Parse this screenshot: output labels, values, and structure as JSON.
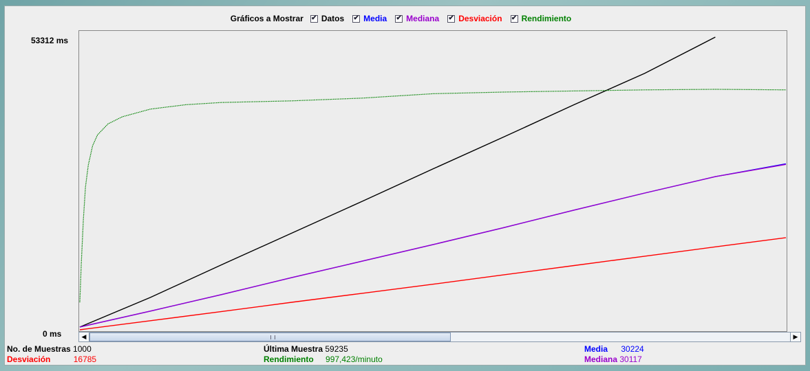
{
  "legend": {
    "title": "Gráficos a Mostrar",
    "items": [
      {
        "label": "Datos",
        "color": "#000000",
        "checked": true
      },
      {
        "label": "Media",
        "color": "#0000ff",
        "checked": true
      },
      {
        "label": "Mediana",
        "color": "#9900cc",
        "checked": true
      },
      {
        "label": "Desviación",
        "color": "#ff0000",
        "checked": true
      },
      {
        "label": "Rendimiento",
        "color": "#008000",
        "checked": true
      }
    ]
  },
  "axis": {
    "y_max_label": "53312  ms",
    "y_min_label": "0  ms"
  },
  "chart_data": {
    "type": "line",
    "x": {
      "label": "",
      "range": [
        0,
        1000
      ]
    },
    "y": {
      "unit": "ms",
      "range": [
        0,
        53312
      ]
    },
    "grid": false,
    "legend_position": "top",
    "series": [
      {
        "name": "Datos",
        "color": "#000000",
        "points": [
          [
            0,
            500
          ],
          [
            100,
            5900
          ],
          [
            200,
            11800
          ],
          [
            300,
            17600
          ],
          [
            400,
            23400
          ],
          [
            500,
            29300
          ],
          [
            600,
            35100
          ],
          [
            700,
            41000
          ],
          [
            800,
            46700
          ],
          [
            900,
            53312
          ]
        ]
      },
      {
        "name": "Media",
        "color": "#0000ff",
        "points": [
          [
            0,
            500
          ],
          [
            100,
            3400
          ],
          [
            200,
            6400
          ],
          [
            300,
            9500
          ],
          [
            400,
            12500
          ],
          [
            500,
            15500
          ],
          [
            600,
            18600
          ],
          [
            700,
            21800
          ],
          [
            800,
            24900
          ],
          [
            900,
            27900
          ],
          [
            1000,
            30224
          ]
        ]
      },
      {
        "name": "Mediana",
        "color": "#9900cc",
        "points": [
          [
            0,
            500
          ],
          [
            100,
            3400
          ],
          [
            200,
            6400
          ],
          [
            300,
            9500
          ],
          [
            400,
            12500
          ],
          [
            500,
            15500
          ],
          [
            600,
            18600
          ],
          [
            700,
            21800
          ],
          [
            800,
            24900
          ],
          [
            900,
            27900
          ],
          [
            1000,
            30117
          ]
        ]
      },
      {
        "name": "Desviación",
        "color": "#ff0000",
        "points": [
          [
            0,
            0
          ],
          [
            100,
            1650
          ],
          [
            200,
            3300
          ],
          [
            300,
            5000
          ],
          [
            400,
            6650
          ],
          [
            500,
            8300
          ],
          [
            600,
            10000
          ],
          [
            700,
            11700
          ],
          [
            800,
            13400
          ],
          [
            900,
            15100
          ],
          [
            1000,
            16785
          ]
        ]
      },
      {
        "name": "Rendimiento",
        "color": "#008000",
        "points": [
          [
            0,
            5000
          ],
          [
            2,
            12000
          ],
          [
            5,
            20000
          ],
          [
            8,
            26000
          ],
          [
            12,
            30000
          ],
          [
            18,
            33500
          ],
          [
            25,
            35500
          ],
          [
            40,
            37500
          ],
          [
            60,
            38800
          ],
          [
            100,
            40200
          ],
          [
            150,
            41000
          ],
          [
            200,
            41400
          ],
          [
            300,
            41700
          ],
          [
            400,
            42200
          ],
          [
            500,
            43000
          ],
          [
            600,
            43300
          ],
          [
            700,
            43500
          ],
          [
            800,
            43700
          ],
          [
            900,
            43800
          ],
          [
            1000,
            43700
          ]
        ]
      }
    ]
  },
  "stats": {
    "samples_label": "No. de Muestras",
    "samples_value": "1000",
    "last_label": "Última Muestra",
    "last_value": "59235",
    "mean_label": "Media",
    "mean_value": "30224",
    "dev_label": "Desviación",
    "dev_value": "16785",
    "throughput_label": "Rendimiento",
    "throughput_value": "997,423/minuto",
    "median_label": "Mediana",
    "median_value": "30117"
  },
  "scrollbar": {
    "left_arrow": "◀",
    "right_arrow": "▶"
  }
}
